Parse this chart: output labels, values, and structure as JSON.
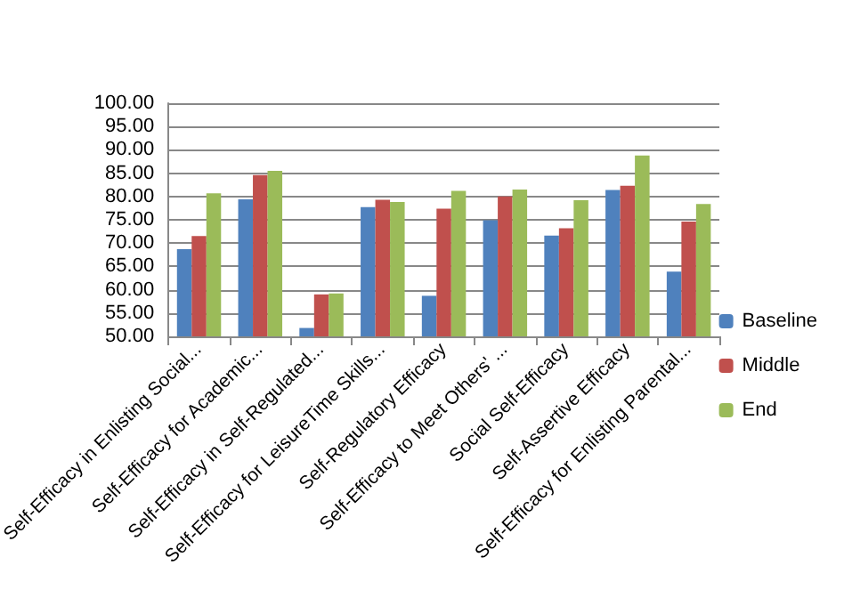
{
  "chart_data": {
    "type": "bar",
    "categories": [
      "Self-Efficacy in Enlisting Social...",
      "Self-Efficacy for Academic...",
      "Self-Efficacy in Self-Regulated...",
      "Self-Efficacy for LeisureTime Skills...",
      "Self-Regulatory Efficacy",
      "Self-Efficacy to Meet Others' ...",
      "Social Self-Efficacy",
      "Self-Assertive Efficacy",
      "Self-Efficacy for Enlisting Parental..."
    ],
    "series": [
      {
        "name": "Baseline",
        "color": "#4f81bd",
        "values": [
          68.7,
          79.4,
          51.8,
          77.7,
          58.7,
          74.9,
          71.6,
          81.4,
          63.9
        ]
      },
      {
        "name": "Middle",
        "color": "#c0504d",
        "values": [
          71.5,
          84.6,
          59.0,
          79.3,
          77.4,
          80.0,
          73.2,
          82.3,
          74.6
        ]
      },
      {
        "name": "End",
        "color": "#9bbb59",
        "values": [
          80.7,
          85.5,
          59.2,
          78.8,
          81.2,
          81.5,
          79.2,
          88.8,
          78.4
        ]
      }
    ],
    "ylim": [
      50,
      100
    ],
    "yticks": [
      {
        "value": 50,
        "label": "50.00"
      },
      {
        "value": 55,
        "label": "55.00"
      },
      {
        "value": 60,
        "label": "60.00"
      },
      {
        "value": 65,
        "label": "65.00"
      },
      {
        "value": 70,
        "label": "70.00"
      },
      {
        "value": 75,
        "label": "75.00"
      },
      {
        "value": 80,
        "label": "80.00"
      },
      {
        "value": 85,
        "label": "85.00"
      },
      {
        "value": 90,
        "label": "90.00"
      },
      {
        "value": 95,
        "label": "95.00"
      },
      {
        "value": 100,
        "label": "100.00"
      }
    ],
    "grid": "y",
    "legend": "right"
  }
}
